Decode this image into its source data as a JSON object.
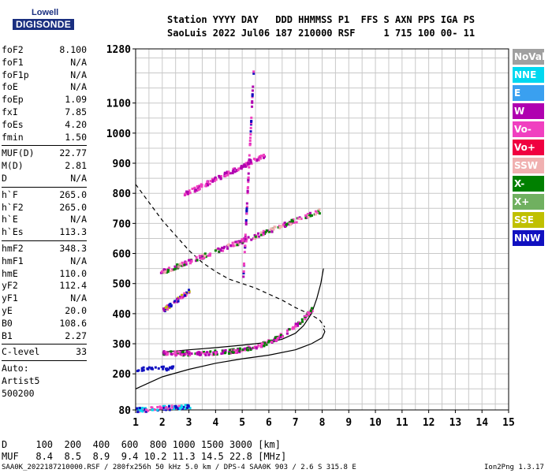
{
  "logo": {
    "line1": "Lowell",
    "line2": "DIGISONDE"
  },
  "header": {
    "line1": "Station YYYY DAY   DDD HHMMSS P1  FFS S AXN PPS IGA PS",
    "line2": "SaoLuis 2022 Jul06 187 210000 RSF     1 715 100 00- 11"
  },
  "params": {
    "group1": [
      {
        "label": "foF2",
        "value": "8.100"
      },
      {
        "label": "foF1",
        "value": "N/A"
      },
      {
        "label": "foF1p",
        "value": "N/A"
      },
      {
        "label": "foE",
        "value": "N/A"
      },
      {
        "label": "foEp",
        "value": "1.09"
      },
      {
        "label": "fxI",
        "value": "7.85"
      },
      {
        "label": "foEs",
        "value": "4.20"
      },
      {
        "label": "fmin",
        "value": "1.50"
      }
    ],
    "group2": [
      {
        "label": "MUF(D)",
        "value": "22.77"
      },
      {
        "label": "M(D)",
        "value": "2.81"
      },
      {
        "label": "D",
        "value": "N/A"
      }
    ],
    "group3": [
      {
        "label": "h`F",
        "value": "265.0"
      },
      {
        "label": "h`F2",
        "value": "265.0"
      },
      {
        "label": "h`E",
        "value": "N/A"
      },
      {
        "label": "h`Es",
        "value": "113.3"
      }
    ],
    "group4": [
      {
        "label": "hmF2",
        "value": "348.3"
      },
      {
        "label": "hmF1",
        "value": "N/A"
      },
      {
        "label": "hmE",
        "value": "110.0"
      },
      {
        "label": "yF2",
        "value": "112.4"
      },
      {
        "label": "yF1",
        "value": "N/A"
      },
      {
        "label": "yE",
        "value": "20.0"
      },
      {
        "label": "B0",
        "value": "108.6"
      },
      {
        "label": "B1",
        "value": "2.27"
      }
    ],
    "group5": [
      {
        "label": "C-level",
        "value": "33"
      }
    ],
    "auto": [
      "Auto:",
      "Artist5",
      "500200"
    ]
  },
  "legend": [
    {
      "label": "NoVal",
      "color": "#a0a0a0"
    },
    {
      "label": "NNE",
      "color": "#00d8f0"
    },
    {
      "label": "E",
      "color": "#3aa0f0"
    },
    {
      "label": "W",
      "color": "#b000b0"
    },
    {
      "label": "Vo-",
      "color": "#f040c0"
    },
    {
      "label": "Vo+",
      "color": "#f00040"
    },
    {
      "label": "SSW",
      "color": "#f0b0b0"
    },
    {
      "label": "X-",
      "color": "#008000"
    },
    {
      "label": "X+",
      "color": "#70b060"
    },
    {
      "label": "SSE",
      "color": "#c0c000"
    },
    {
      "label": "NNW",
      "color": "#1010c0"
    }
  ],
  "muf_table": {
    "line1": "D     100  200  400  600  800 1000 1500 3000 [km]",
    "line2": "MUF   8.4  8.5  8.9  9.4 10.2 11.3 14.5 22.8 [MHz]"
  },
  "footer": {
    "left": "SAA0K_2022187210000.RSF / 280fx256h 50 kHz 5.0 km / DPS-4 SAA0K 903 / 2.6 S 315.8 E",
    "right": "Ion2Png 1.3.17"
  },
  "chart_data": {
    "type": "scatter",
    "title": "",
    "xlabel": "",
    "ylabel": "",
    "xlim": [
      1,
      15
    ],
    "ylim": [
      80,
      1280
    ],
    "x_ticks": [
      1,
      2,
      3,
      4,
      5,
      6,
      7,
      8,
      9,
      10,
      11,
      12,
      13,
      14,
      15
    ],
    "y_ticks": [
      80,
      200,
      300,
      400,
      500,
      600,
      700,
      800,
      900,
      1000,
      1100,
      1280
    ],
    "grid": true,
    "series": [
      {
        "name": "profile",
        "style": "solid",
        "color": "#000000",
        "points": [
          [
            1,
            150
          ],
          [
            2,
            190
          ],
          [
            3,
            215
          ],
          [
            4,
            235
          ],
          [
            5,
            250
          ],
          [
            6,
            262
          ],
          [
            7,
            280
          ],
          [
            7.6,
            300
          ],
          [
            8.0,
            320
          ],
          [
            8.1,
            340
          ],
          [
            8.05,
            350
          ]
        ]
      },
      {
        "name": "scaled_trace",
        "style": "dashed",
        "color": "#000000",
        "points": [
          [
            1,
            830
          ],
          [
            1.5,
            770
          ],
          [
            2,
            710
          ],
          [
            2.5,
            660
          ],
          [
            3,
            610
          ],
          [
            3.5,
            570
          ],
          [
            4,
            540
          ],
          [
            4.5,
            515
          ],
          [
            5,
            500
          ],
          [
            5.5,
            485
          ],
          [
            6,
            465
          ],
          [
            6.5,
            445
          ],
          [
            7,
            420
          ],
          [
            7.5,
            400
          ],
          [
            7.9,
            380
          ],
          [
            8.1,
            355
          ]
        ]
      },
      {
        "name": "O_trace",
        "style": "solid",
        "color": "#000000",
        "points": [
          [
            2,
            272
          ],
          [
            3,
            280
          ],
          [
            4,
            287
          ],
          [
            5,
            295
          ],
          [
            6,
            305
          ],
          [
            6.5,
            315
          ],
          [
            7,
            335
          ],
          [
            7.3,
            360
          ],
          [
            7.6,
            400
          ],
          [
            7.8,
            450
          ],
          [
            7.95,
            500
          ],
          [
            8.05,
            550
          ]
        ]
      }
    ]
  }
}
